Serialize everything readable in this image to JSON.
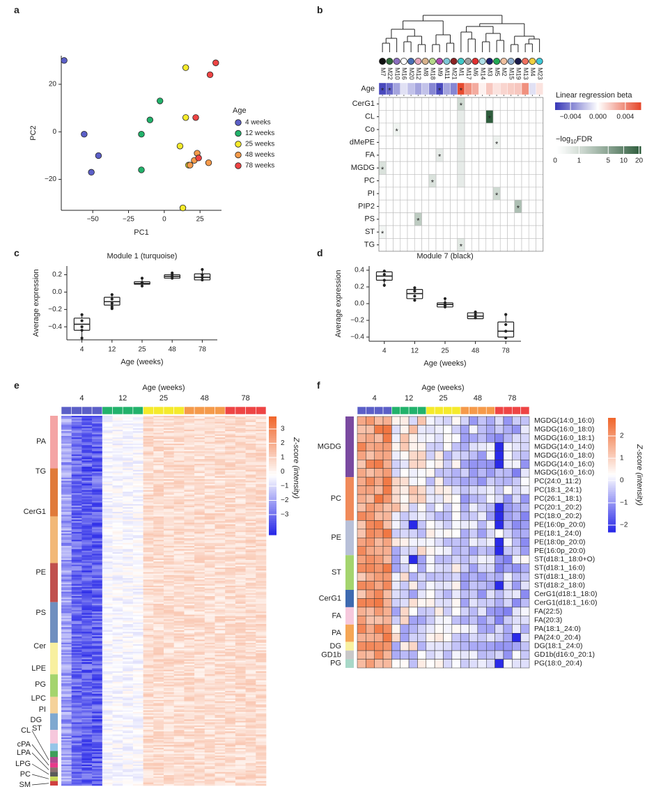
{
  "panels": {
    "a": "a",
    "b": "b",
    "c": "c",
    "d": "d",
    "e": "e",
    "f": "f"
  },
  "colors": {
    "age": {
      "4 weeks": "#5b5fc7",
      "12 weeks": "#22b26b",
      "25 weeks": "#f5ea2b",
      "48 weeks": "#f59a4a",
      "78 weeks": "#ee4444"
    },
    "heat_low": "#2a2ae8",
    "heat_mid": "#ffffff",
    "heat_high": "#f0682e",
    "fdr_low": "#ffffff",
    "fdr_high": "#2f5d3d"
  },
  "chart_data": [
    {
      "id": "a",
      "type": "scatter",
      "xlabel": "PC1",
      "ylabel": "PC2",
      "xticks": [
        -50,
        -25,
        0,
        25
      ],
      "yticks": [
        -20,
        0,
        20
      ],
      "xlim": [
        -72,
        40
      ],
      "ylim": [
        -33,
        32
      ],
      "legend_title": "Age",
      "legend_position": "right",
      "series": [
        {
          "name": "4 weeks",
          "points": [
            [
              -70,
              30
            ],
            [
              -56,
              -1
            ],
            [
              -46,
              -10
            ],
            [
              -51,
              -17
            ]
          ]
        },
        {
          "name": "12 weeks",
          "points": [
            [
              -3,
              13
            ],
            [
              -10,
              5
            ],
            [
              -16,
              -1
            ],
            [
              -16,
              -16
            ]
          ]
        },
        {
          "name": "25 weeks",
          "points": [
            [
              15,
              27
            ],
            [
              15,
              6
            ],
            [
              11,
              -6
            ],
            [
              17,
              -14
            ],
            [
              13,
              -32
            ]
          ]
        },
        {
          "name": "48 weeks",
          "points": [
            [
              23,
              -9
            ],
            [
              21,
              -12
            ],
            [
              18,
              -14
            ],
            [
              31,
              -13
            ]
          ]
        },
        {
          "name": "78 weeks",
          "points": [
            [
              36,
              29
            ],
            [
              32,
              24
            ],
            [
              22,
              6
            ],
            [
              24,
              -11
            ]
          ]
        }
      ]
    },
    {
      "id": "b",
      "type": "heatmap",
      "modules": [
        "M7",
        "M22",
        "M10",
        "M16",
        "M20",
        "M12",
        "M8",
        "M18",
        "M9",
        "M11",
        "M21",
        "M1",
        "M17",
        "M6",
        "M14",
        "M3",
        "M5",
        "M2",
        "M15",
        "M19",
        "M13",
        "M4",
        "M23"
      ],
      "module_colors": [
        "#111111",
        "#2f6b3a",
        "#8c6fc0",
        "#ffffff",
        "#4a6fb5",
        "#e6a4b8",
        "#d9b38c",
        "#b5d98a",
        "#b04ab0",
        "#7fc8d8",
        "#8b2222",
        "#3fc9c9",
        "#a0a0a0",
        "#e03030",
        "#b0e0e8",
        "#1e1e6e",
        "#22aa55",
        "#f0c0a0",
        "#8fb0d0",
        "#1a1a4a",
        "#f07060",
        "#f0d040",
        "#3fc9d9"
      ],
      "age_row_label": "Age",
      "age_beta": [
        -0.006,
        -0.005,
        -0.003,
        -0.001,
        -0.002,
        -0.003,
        -0.002,
        -0.004,
        -0.006,
        -0.003,
        -0.004,
        0.007,
        0.004,
        0.003,
        0.0005,
        0.002,
        0.001,
        0.0015,
        0.0018,
        0.002,
        0.004,
        -0.001,
        0.001
      ],
      "age_stars": [
        0,
        1,
        8,
        11
      ],
      "rows": [
        "CerG1",
        "CL",
        "Co",
        "dMePE",
        "FA",
        "MGDG",
        "PC",
        "PI",
        "PIP2",
        "PS",
        "ST",
        "TG"
      ],
      "cells": [
        {
          "row": 0,
          "col": 11,
          "fdr": 2,
          "star": true
        },
        {
          "row": 1,
          "col": 15,
          "fdr": 22,
          "star": true
        },
        {
          "row": 1,
          "col": 11,
          "fdr": 1
        },
        {
          "row": 2,
          "col": 2,
          "fdr": 0.6,
          "star": true
        },
        {
          "row": 2,
          "col": 11,
          "fdr": 1
        },
        {
          "row": 3,
          "col": 16,
          "fdr": 0.7,
          "star": true
        },
        {
          "row": 3,
          "col": 11,
          "fdr": 1
        },
        {
          "row": 4,
          "col": 8,
          "fdr": 1,
          "star": true
        },
        {
          "row": 4,
          "col": 11,
          "fdr": 1
        },
        {
          "row": 5,
          "col": 0,
          "fdr": 1.5,
          "star": true
        },
        {
          "row": 5,
          "col": 11,
          "fdr": 1
        },
        {
          "row": 6,
          "col": 7,
          "fdr": 1.5,
          "star": true
        },
        {
          "row": 6,
          "col": 11,
          "fdr": 1
        },
        {
          "row": 7,
          "col": 16,
          "fdr": 2,
          "star": true
        },
        {
          "row": 8,
          "col": 19,
          "fdr": 4,
          "star": true
        },
        {
          "row": 9,
          "col": 5,
          "fdr": 3,
          "star": true
        },
        {
          "row": 10,
          "col": 0,
          "fdr": 0.5,
          "star": true
        },
        {
          "row": 11,
          "col": 11,
          "fdr": 1.2,
          "star": true
        }
      ],
      "legend_beta_title": "Linear regression beta",
      "legend_beta_ticks": [
        "−0.004",
        "0.000",
        "0.004"
      ],
      "legend_fdr_title_main": "−log",
      "legend_fdr_title_sub": "10",
      "legend_fdr_title_end": "FDR",
      "legend_fdr_ticks": [
        "0",
        "1",
        "5",
        "10",
        "20"
      ]
    },
    {
      "id": "c",
      "type": "box",
      "title": "Module 1 (turquoise)",
      "xlabel": "Age (weeks)",
      "ylabel": "Average expression",
      "categories": [
        "4",
        "12",
        "25",
        "48",
        "78"
      ],
      "ylim": [
        -0.55,
        0.3
      ],
      "yticks": [
        -0.4,
        -0.2,
        0.0,
        0.2
      ],
      "boxes": [
        {
          "q1": -0.44,
          "median": -0.37,
          "q3": -0.3,
          "min": -0.53,
          "max": -0.26,
          "points": [
            -0.26,
            -0.33,
            -0.4,
            -0.44,
            -0.53
          ]
        },
        {
          "q1": -0.15,
          "median": -0.11,
          "q3": -0.06,
          "min": -0.19,
          "max": -0.03,
          "points": [
            -0.03,
            -0.08,
            -0.13,
            -0.17,
            -0.19
          ]
        },
        {
          "q1": 0.09,
          "median": 0.1,
          "q3": 0.12,
          "min": 0.07,
          "max": 0.16,
          "points": [
            0.16,
            0.11,
            0.1,
            0.07
          ]
        },
        {
          "q1": 0.16,
          "median": 0.18,
          "q3": 0.2,
          "min": 0.15,
          "max": 0.22,
          "points": [
            0.22,
            0.2,
            0.18,
            0.16
          ]
        },
        {
          "q1": 0.14,
          "median": 0.17,
          "q3": 0.21,
          "min": 0.13,
          "max": 0.26,
          "points": [
            0.26,
            0.2,
            0.17,
            0.14
          ]
        }
      ]
    },
    {
      "id": "d",
      "type": "box",
      "title": "Module 7 (black)",
      "xlabel": "Age (weeks)",
      "ylabel": "Average expression",
      "categories": [
        "4",
        "12",
        "25",
        "48",
        "78"
      ],
      "ylim": [
        -0.45,
        0.45
      ],
      "yticks": [
        -0.4,
        -0.2,
        0.0,
        0.2,
        0.4
      ],
      "boxes": [
        {
          "q1": 0.28,
          "median": 0.33,
          "q3": 0.38,
          "min": 0.2,
          "max": 0.39,
          "points": [
            0.39,
            0.35,
            0.28,
            0.22
          ]
        },
        {
          "q1": 0.06,
          "median": 0.12,
          "q3": 0.17,
          "min": 0.04,
          "max": 0.19,
          "points": [
            0.19,
            0.15,
            0.09,
            0.04
          ]
        },
        {
          "q1": -0.04,
          "median": -0.01,
          "q3": 0.01,
          "min": -0.04,
          "max": 0.06,
          "points": [
            0.06,
            0.01,
            -0.02,
            -0.04
          ]
        },
        {
          "q1": -0.18,
          "median": -0.15,
          "q3": -0.11,
          "min": -0.18,
          "max": -0.1,
          "points": [
            -0.1,
            -0.13,
            -0.17
          ]
        },
        {
          "q1": -0.4,
          "median": -0.33,
          "q3": -0.22,
          "min": -0.42,
          "max": -0.13,
          "points": [
            -0.13,
            -0.25,
            -0.33,
            -0.41
          ]
        }
      ]
    },
    {
      "id": "e",
      "type": "heatmap",
      "title": "Age (weeks)",
      "age_groups": [
        "4",
        "12",
        "25",
        "48",
        "78"
      ],
      "class_labels": [
        "PA",
        "TG",
        "CerG1",
        "PE",
        "PS",
        "Cer",
        "LPE",
        "PG",
        "LPC",
        "PI",
        "DG",
        "ST",
        "CL",
        "cPA",
        "LPA",
        "LPG",
        "PC",
        "SM"
      ],
      "legend_title": "Z-score (intensity)",
      "legend_ticks": [
        "3",
        "2",
        "1",
        "0",
        "−1",
        "−2",
        "−3"
      ],
      "zlim": [
        -3.5,
        3.5
      ]
    },
    {
      "id": "f",
      "type": "heatmap",
      "title": "Age (weeks)",
      "age_groups": [
        "4",
        "12",
        "25",
        "48",
        "78"
      ],
      "class_labels": [
        "MGDG",
        "PC",
        "PE",
        "ST",
        "CerG1",
        "FA",
        "PA",
        "DG",
        "GD1b",
        "PG"
      ],
      "row_labels": [
        "MGDG(14:0_16:0)",
        "MGDG(16:0_18:0)",
        "MGDG(16:0_18:1)",
        "MGDG(14:0_14:0)",
        "MGDG(16:0_18:0)",
        "MGDG(14:0_16:0)",
        "MGDG(16:0_16:0)",
        "PC(24:0_11:2)",
        "PC(18:1_24:1)",
        "PC(26:1_18:1)",
        "PC(20:1_20:2)",
        "PC(18:0_20:2)",
        "PE(16:0p_20:0)",
        "PE(18:1_24:0)",
        "PE(18:0p_20:0)",
        "PE(16:0p_20:0)",
        "ST(d18:1_18:0+O)",
        "ST(d18:1_16:0)",
        "ST(d18:1_18:0)",
        "ST(d18:2_18:0)",
        "CerG1(d18:1_18:0)",
        "CerG1(d18:1_16:0)",
        "FA(22:5)",
        "FA(20:3)",
        "PA(18:1_24:0)",
        "PA(24:0_20:4)",
        "DG(18:1_24:0)",
        "GD1b(d16:0_20:1)",
        "PG(18:0_20:4)"
      ],
      "legend_title": "Z-score (intensity)",
      "legend_ticks": [
        "2",
        "1",
        "0",
        "−1",
        "−2"
      ],
      "zlim": [
        -2.5,
        2.5
      ]
    }
  ]
}
